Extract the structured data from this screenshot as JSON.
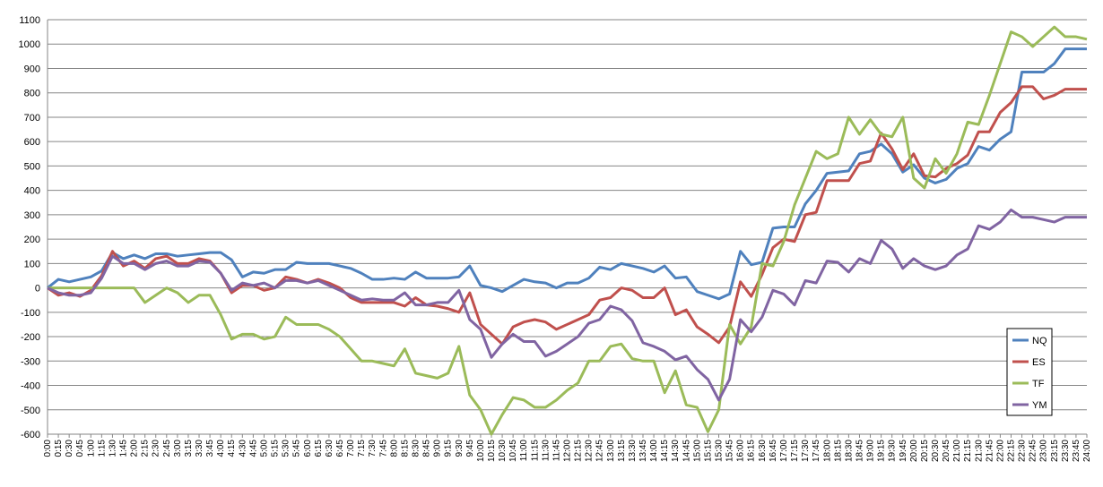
{
  "chart_data": {
    "type": "line",
    "title": "",
    "xlabel": "",
    "ylabel": "",
    "ylim": [
      -600,
      1100
    ],
    "ystep": 100,
    "grid": "horizontal",
    "legend_position": "right",
    "x": [
      "0:00",
      "0:15",
      "0:30",
      "0:45",
      "1:00",
      "1:15",
      "1:30",
      "1:45",
      "2:00",
      "2:15",
      "2:30",
      "2:45",
      "3:00",
      "3:15",
      "3:30",
      "3:45",
      "4:00",
      "4:15",
      "4:30",
      "4:45",
      "5:00",
      "5:15",
      "5:30",
      "5:45",
      "6:00",
      "6:15",
      "6:30",
      "6:45",
      "7:00",
      "7:15",
      "7:30",
      "7:45",
      "8:00",
      "8:15",
      "8:30",
      "8:45",
      "9:00",
      "9:15",
      "9:30",
      "9:45",
      "10:00",
      "10:15",
      "10:30",
      "10:45",
      "11:00",
      "11:15",
      "11:30",
      "11:45",
      "12:00",
      "12:15",
      "12:30",
      "12:45",
      "13:00",
      "13:15",
      "13:30",
      "13:45",
      "14:00",
      "14:15",
      "14:30",
      "14:45",
      "15:00",
      "15:15",
      "15:30",
      "15:45",
      "16:00",
      "16:15",
      "16:30",
      "16:45",
      "17:00",
      "17:15",
      "17:30",
      "17:45",
      "18:00",
      "18:15",
      "18:30",
      "18:45",
      "19:00",
      "19:15",
      "19:30",
      "19:45",
      "20:00",
      "20:15",
      "20:30",
      "20:45",
      "21:00",
      "21:15",
      "21:30",
      "21:45",
      "22:00",
      "22:15",
      "22:30",
      "22:45",
      "23:00",
      "23:15",
      "23:30",
      "23:45",
      "24:00"
    ],
    "series": [
      {
        "name": "NQ",
        "color": "#4f81bd",
        "values": [
          0,
          35,
          25,
          35,
          45,
          70,
          145,
          120,
          135,
          120,
          140,
          140,
          130,
          135,
          140,
          145,
          145,
          115,
          45,
          65,
          60,
          75,
          75,
          105,
          100,
          100,
          100,
          90,
          80,
          60,
          35,
          35,
          40,
          35,
          65,
          40,
          40,
          40,
          45,
          90,
          10,
          0,
          -15,
          10,
          35,
          25,
          20,
          0,
          20,
          20,
          40,
          85,
          75,
          100,
          90,
          80,
          65,
          90,
          40,
          45,
          -15,
          -30,
          -45,
          -25,
          150,
          95,
          105,
          245,
          250,
          250,
          345,
          400,
          470,
          475,
          480,
          550,
          560,
          590,
          550,
          475,
          505,
          450,
          430,
          445,
          490,
          510,
          580,
          565,
          610,
          640,
          885,
          885,
          885,
          920,
          980,
          980,
          980
        ]
      },
      {
        "name": "ES",
        "color": "#c0504d",
        "values": [
          0,
          -30,
          -20,
          -35,
          -10,
          50,
          150,
          90,
          110,
          80,
          120,
          130,
          100,
          100,
          120,
          110,
          60,
          -20,
          10,
          10,
          -10,
          0,
          45,
          35,
          20,
          35,
          20,
          0,
          -40,
          -60,
          -60,
          -60,
          -60,
          -75,
          -40,
          -70,
          -75,
          -85,
          -100,
          -20,
          -150,
          -190,
          -230,
          -160,
          -140,
          -130,
          -140,
          -170,
          -150,
          -130,
          -110,
          -50,
          -40,
          0,
          -10,
          -40,
          -40,
          0,
          -110,
          -90,
          -160,
          -190,
          -225,
          -160,
          25,
          -35,
          55,
          165,
          200,
          190,
          300,
          310,
          440,
          440,
          440,
          510,
          520,
          635,
          570,
          485,
          550,
          460,
          455,
          490,
          510,
          545,
          640,
          640,
          720,
          760,
          825,
          825,
          775,
          790,
          815,
          815,
          815
        ]
      },
      {
        "name": "TF",
        "color": "#9bbb59",
        "values": [
          0,
          0,
          0,
          0,
          0,
          0,
          0,
          0,
          0,
          -60,
          -30,
          0,
          -20,
          -60,
          -30,
          -30,
          -110,
          -210,
          -190,
          -190,
          -210,
          -200,
          -120,
          -150,
          -150,
          -150,
          -170,
          -200,
          -250,
          -300,
          -300,
          -310,
          -320,
          -250,
          -350,
          -360,
          -370,
          -350,
          -240,
          -440,
          -500,
          -600,
          -520,
          -450,
          -460,
          -490,
          -490,
          -460,
          -420,
          -390,
          -300,
          -300,
          -240,
          -230,
          -290,
          -300,
          -300,
          -430,
          -340,
          -480,
          -490,
          -590,
          -500,
          -150,
          -230,
          -160,
          100,
          90,
          190,
          340,
          450,
          560,
          530,
          550,
          700,
          630,
          690,
          630,
          620,
          700,
          450,
          410,
          530,
          470,
          550,
          680,
          670,
          790,
          920,
          1050,
          1030,
          990,
          1030,
          1070,
          1030,
          1030,
          1020
        ]
      },
      {
        "name": "YM",
        "color": "#8064a2",
        "values": [
          0,
          -20,
          -30,
          -30,
          -20,
          40,
          130,
          100,
          100,
          75,
          100,
          110,
          90,
          90,
          110,
          105,
          60,
          -10,
          20,
          10,
          20,
          0,
          30,
          30,
          20,
          30,
          10,
          -10,
          -30,
          -50,
          -45,
          -50,
          -50,
          -20,
          -70,
          -70,
          -60,
          -60,
          -10,
          -130,
          -170,
          -285,
          -230,
          -190,
          -220,
          -220,
          -280,
          -260,
          -230,
          -200,
          -145,
          -130,
          -75,
          -90,
          -135,
          -225,
          -240,
          -260,
          -295,
          -280,
          -335,
          -375,
          -460,
          -375,
          -130,
          -180,
          -120,
          -10,
          -25,
          -70,
          30,
          20,
          110,
          105,
          65,
          120,
          100,
          195,
          160,
          80,
          120,
          90,
          75,
          90,
          135,
          160,
          255,
          240,
          270,
          320,
          290,
          290,
          280,
          270,
          290,
          290,
          290
        ]
      }
    ]
  }
}
